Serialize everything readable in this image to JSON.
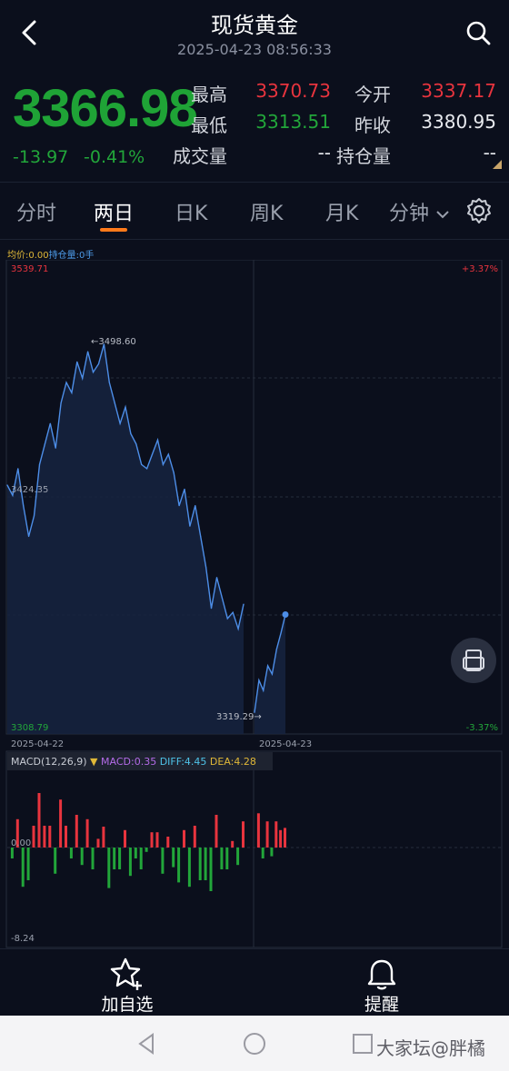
{
  "header": {
    "title": "现货黄金",
    "datetime": "2025-04-23 08:56:33"
  },
  "quote": {
    "price": "3366.98",
    "change": "-13.97",
    "change_pct": "-0.41%",
    "high_label": "最高",
    "high_value": "3370.73",
    "open_label": "今开",
    "open_value": "3337.17",
    "low_label": "最低",
    "low_value": "3313.51",
    "prev_close_label": "昨收",
    "prev_close_value": "3380.95",
    "volume_label": "成交量",
    "volume_value": "--",
    "open_interest_label": "持仓量",
    "open_interest_value": "--"
  },
  "tabs": [
    {
      "label": "分时"
    },
    {
      "label": "两日"
    },
    {
      "label": "日K"
    },
    {
      "label": "周K"
    },
    {
      "label": "月K"
    },
    {
      "label": "分钟"
    }
  ],
  "active_tab": "两日",
  "chart_legend": {
    "avg": "均价:0.00",
    "oi": "持仓量:0手"
  },
  "chart_data": {
    "type": "line",
    "title": "",
    "price_axis": {
      "max_label": "3539.71",
      "min_label": "3308.79",
      "mid_label": "3424.35",
      "ylim": [
        3308.79,
        3539.71
      ]
    },
    "pct_axis": {
      "max_label": "+3.37%",
      "min_label": "-3.37%"
    },
    "x_labels": [
      "2025-04-22",
      "2025-04-23"
    ],
    "annotations": {
      "high": "3498.60",
      "low": "3319.29"
    },
    "series": [
      {
        "day": "2025-04-22",
        "values": [
          3430,
          3425,
          3438,
          3420,
          3405,
          3415,
          3440,
          3450,
          3460,
          3448,
          3470,
          3480,
          3475,
          3490,
          3482,
          3495,
          3485,
          3489,
          3498.6,
          3480,
          3470,
          3460,
          3468,
          3455,
          3450,
          3440,
          3438,
          3445,
          3452,
          3440,
          3445,
          3436,
          3420,
          3428,
          3410,
          3420,
          3405,
          3390,
          3370,
          3385,
          3375,
          3365,
          3368,
          3360,
          3372
        ]
      },
      {
        "day": "2025-04-23",
        "values": [
          3319.29,
          3335,
          3330,
          3342,
          3338,
          3350,
          3358,
          3366.98
        ]
      }
    ],
    "macd": {
      "label": "MACD(12,26,9)",
      "macd_text": "MACD:0.35",
      "diff_text": "DIFF:4.45",
      "dea_text": "DEA:4.28",
      "min_label": "-8.24",
      "zero_label": "0.00"
    }
  },
  "bottom_bar": {
    "add_label": "加自选",
    "alert_label": "提醒"
  },
  "watermark": "大家坛@胖橘",
  "colors": {
    "up": "#e8343e",
    "down": "#22a63a",
    "line": "#4d8ee8",
    "accent": "#ff7a1a"
  }
}
